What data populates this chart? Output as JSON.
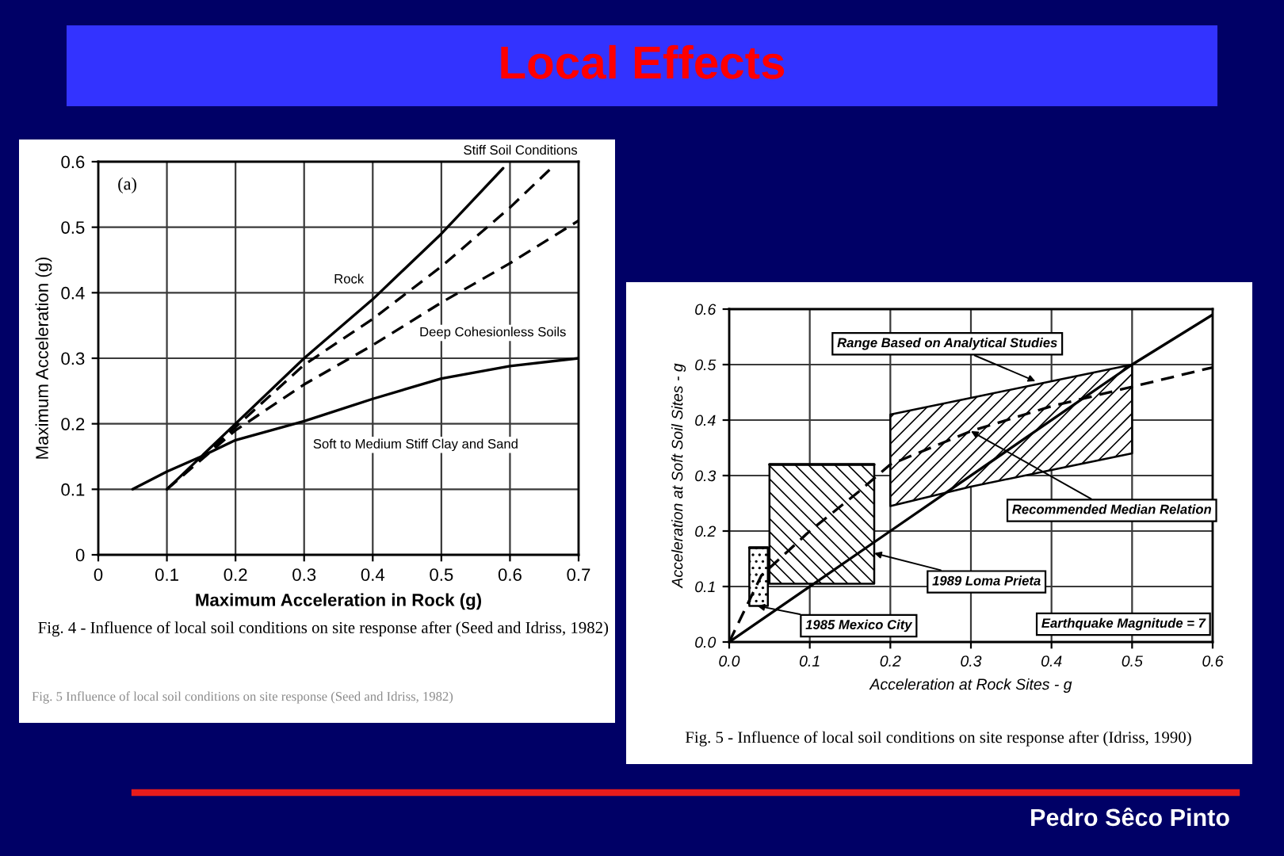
{
  "chart_data": [
    {
      "type": "other",
      "title": "Local Effects",
      "annotations": [
        "Pedro Sêco Pinto"
      ]
    },
    {
      "type": "line",
      "xlabel": "Maximum Acceleration in Rock (g)",
      "ylabel": "Maximum Acceleration (g)",
      "xlim": [
        0,
        0.7
      ],
      "xticks": [
        0,
        0.1,
        0.2,
        0.3,
        0.4,
        0.5,
        0.6,
        0.7
      ],
      "ylim": [
        0,
        0.6
      ],
      "yticks": [
        0,
        0.1,
        0.2,
        0.3,
        0.4,
        0.5,
        0.6
      ],
      "grid": true,
      "series": [
        {
          "name": "Rock",
          "color": "#000000",
          "line_style": "solid",
          "x": [
            0.1,
            0.2,
            0.3,
            0.4,
            0.5,
            0.59
          ],
          "values": [
            0.1,
            0.2,
            0.3,
            0.39,
            0.49,
            0.59
          ]
        },
        {
          "name": "Stiff Soil Conditions",
          "color": "#000000",
          "line_style": "dashed",
          "x": [
            0.1,
            0.2,
            0.3,
            0.4,
            0.5,
            0.6,
            0.66
          ],
          "values": [
            0.1,
            0.195,
            0.29,
            0.36,
            0.44,
            0.53,
            0.59
          ]
        },
        {
          "name": "Deep Cohesionless Soils",
          "color": "#000000",
          "line_style": "dashed",
          "x": [
            0.1,
            0.2,
            0.3,
            0.4,
            0.5,
            0.6,
            0.7
          ],
          "values": [
            0.1,
            0.19,
            0.26,
            0.32,
            0.385,
            0.445,
            0.51
          ]
        },
        {
          "name": "Soft to Medium Stiff Clay and Sand",
          "color": "#000000",
          "line_style": "solid",
          "x": [
            0.05,
            0.1,
            0.15,
            0.2,
            0.3,
            0.4,
            0.5,
            0.6,
            0.7
          ],
          "values": [
            0.1,
            0.127,
            0.15,
            0.175,
            0.204,
            0.238,
            0.269,
            0.288,
            0.3
          ]
        }
      ],
      "annotations": [
        "(a)",
        "Fig. 4 - Influence of local soil conditions on site response after (Seed and Idriss, 1982)",
        "Fig. 5 Influence of local soil conditions on site response (Seed and Idriss, 1982)"
      ]
    },
    {
      "type": "line",
      "xlabel": "Acceleration at Rock Sites - g",
      "ylabel": "Acceleration at Soft Soil Sites - g",
      "xlim": [
        0,
        0.6
      ],
      "xticks": [
        {
          "value": 0,
          "label": "0.0"
        },
        0.1,
        0.2,
        0.3,
        0.4,
        0.5,
        0.6
      ],
      "ylim": [
        0,
        0.6
      ],
      "yticks": [
        {
          "value": 0,
          "label": "0.0"
        },
        0.1,
        0.2,
        0.3,
        0.4,
        0.5,
        0.6
      ],
      "grid": true,
      "series": [
        {
          "color": "#000000",
          "line_style": "solid",
          "x": [
            0,
            0.2,
            0.5,
            0.6
          ],
          "values": [
            0,
            0.2,
            0.5,
            0.59
          ]
        },
        {
          "color": "#000000",
          "line_style": "dashed",
          "x": [
            0,
            0.04,
            0.1,
            0.16,
            0.2,
            0.3,
            0.4,
            0.5,
            0.6
          ],
          "values": [
            0,
            0.12,
            0.2,
            0.27,
            0.32,
            0.38,
            0.425,
            0.46,
            0.495
          ],
          "lower": [
            null,
            null,
            null,
            null,
            0.245,
            0.28,
            0.31,
            0.34,
            null
          ],
          "upper": [
            null,
            null,
            null,
            null,
            0.41,
            0.44,
            0.47,
            0.5,
            null
          ]
        },
        {
          "color": "#000000",
          "line_style": "solid",
          "x": [
            0.05,
            0.18
          ],
          "values": [
            0.32,
            0.32
          ],
          "lower": [
            0.105,
            0.105
          ],
          "upper": [
            0.32,
            0.32
          ]
        },
        {
          "color": "#000000",
          "line_style": "solid",
          "x": [
            0.025,
            0.048
          ],
          "values": [
            0.17,
            0.17
          ],
          "lower": [
            0.065,
            0.065
          ],
          "upper": [
            0.17,
            0.17
          ]
        }
      ],
      "annotations": [
        {
          "text": "Range Based on Analytical Studies",
          "x": 0.38,
          "y": 0.47
        },
        {
          "text": "Recommended Median Relation",
          "x": 0.3,
          "y": 0.38
        },
        {
          "text": "1989 Loma Prieta",
          "x": 0.18,
          "y": 0.16
        },
        {
          "text": "1985 Mexico City",
          "x": 0.035,
          "y": 0.065
        },
        "Earthquake Magnitude = 7",
        "Fig. 5 - Influence of local soil conditions on site response after (Idriss, 1990)"
      ]
    }
  ]
}
